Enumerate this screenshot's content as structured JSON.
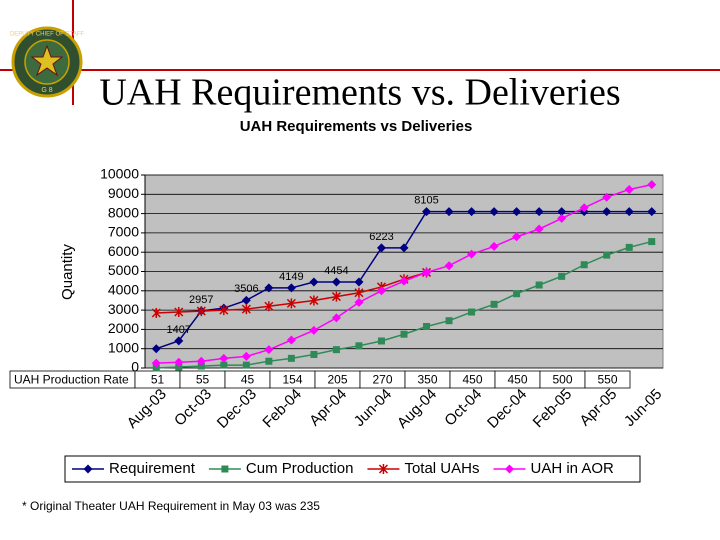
{
  "logo": {
    "top_text": "DEPUTY CHIEF OF STAFF",
    "bottom_text": "G 8"
  },
  "slide_title": "UAH Requirements vs. Deliveries",
  "footnote": "* Original Theater UAH Requirement in May 03 was 235",
  "chart_data": {
    "type": "line",
    "title": "UAH Requirements vs Deliveries",
    "y_label": "Quantity",
    "categories": [
      "Aug-03",
      null,
      "Oct-03",
      null,
      "Dec-03",
      null,
      "Feb-04",
      null,
      "Apr-04",
      null,
      "Jun-04",
      null,
      "Aug-04",
      null,
      "Oct-04",
      null,
      "Dec-04",
      null,
      "Feb-05",
      null,
      "Apr-05",
      null,
      "Jun-05"
    ],
    "ylim": [
      0,
      10000
    ],
    "yticks": [
      0,
      1000,
      2000,
      3000,
      4000,
      5000,
      6000,
      7000,
      8000,
      9000,
      10000
    ],
    "grid": true,
    "legend": "bottom",
    "series": [
      {
        "name": "Requirement",
        "color": "#000080",
        "marker": "diamond",
        "values": [
          1000,
          1407,
          2957,
          3100,
          3506,
          4149,
          4149,
          4454,
          4454,
          4454,
          6223,
          6223,
          8105,
          8105,
          8105,
          8105,
          8105,
          8105,
          8105,
          8105,
          8105,
          8105,
          8105
        ],
        "value_labels": [
          null,
          "1407",
          "2957",
          null,
          "3506",
          null,
          "4149",
          null,
          "4454",
          null,
          "6223",
          null,
          "8105",
          null,
          null,
          null,
          null,
          null,
          null,
          null,
          null,
          null,
          null
        ]
      },
      {
        "name": "Cum Production",
        "color": "#2e8b57",
        "marker": "square",
        "values": [
          0,
          50,
          100,
          150,
          150,
          350,
          500,
          700,
          950,
          1150,
          1400,
          1750,
          2150,
          2450,
          2900,
          3300,
          3850,
          4300,
          4750,
          5350,
          5850,
          6250,
          6550
        ]
      },
      {
        "name": "Total UAHs",
        "color": "#cc0000",
        "marker": "star",
        "values": [
          2850,
          2900,
          2950,
          3000,
          3050,
          3200,
          3350,
          3500,
          3700,
          3900,
          4200,
          4600,
          4950,
          null,
          null,
          null,
          null,
          null,
          null,
          null,
          null,
          null,
          null
        ]
      },
      {
        "name": "UAH in AOR",
        "color": "#ff00ff",
        "marker": "diamond",
        "values": [
          250,
          300,
          350,
          500,
          600,
          950,
          1450,
          1950,
          2600,
          3400,
          4000,
          4500,
          4950,
          5300,
          5900,
          6300,
          6800,
          7200,
          7750,
          8300,
          8850,
          9250,
          9500
        ]
      }
    ],
    "table": {
      "label": "UAH Production Rate",
      "values": [
        "51",
        "55",
        "45",
        "154",
        "205",
        "270",
        "350",
        "450",
        "450",
        "500",
        "550"
      ]
    }
  }
}
